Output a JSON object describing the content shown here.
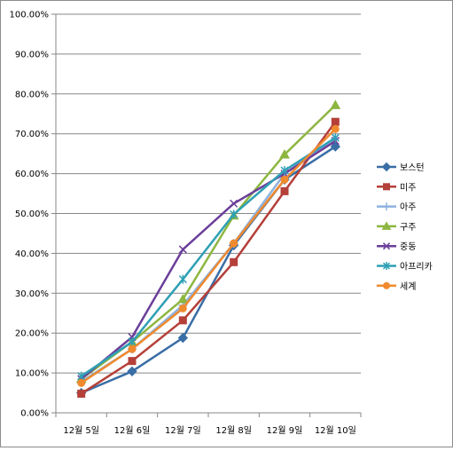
{
  "chart_data": {
    "type": "line",
    "categories": [
      "12월 5일",
      "12월 6일",
      "12월 7일",
      "12월 8일",
      "12월 9일",
      "12월 10일"
    ],
    "y_tick_labels": [
      "0.00%",
      "10.00%",
      "20.00%",
      "30.00%",
      "40.00%",
      "50.00%",
      "60.00%",
      "70.00%",
      "80.00%",
      "90.00%",
      "100.00%"
    ],
    "ylim": [
      0,
      1
    ],
    "grid": true,
    "legend_position": "right",
    "series": [
      {
        "name": "보스턴",
        "color": "#3a6ea5",
        "marker": "diamond",
        "values": [
          0.05,
          0.104,
          0.188,
          0.42,
          0.585,
          0.668
        ]
      },
      {
        "name": "미주",
        "color": "#b5403a",
        "marker": "square",
        "values": [
          0.048,
          0.13,
          0.232,
          0.378,
          0.556,
          0.73
        ]
      },
      {
        "name": "아주",
        "color": "#8db2e0",
        "marker": "plus",
        "values": [
          0.078,
          0.16,
          0.27,
          0.425,
          0.6,
          0.69
        ]
      },
      {
        "name": "구주",
        "color": "#8db640",
        "marker": "triangle",
        "values": [
          0.085,
          0.178,
          0.285,
          0.495,
          0.648,
          0.772
        ]
      },
      {
        "name": "중동",
        "color": "#6b3f9a",
        "marker": "x",
        "values": [
          0.085,
          0.19,
          0.41,
          0.525,
          0.6,
          0.682
        ]
      },
      {
        "name": "아프리카",
        "color": "#2fa0b5",
        "marker": "asterisk",
        "values": [
          0.092,
          0.178,
          0.335,
          0.498,
          0.608,
          0.69
        ]
      },
      {
        "name": "세계",
        "color": "#f08a2e",
        "marker": "circle",
        "values": [
          0.075,
          0.16,
          0.262,
          0.425,
          0.585,
          0.712
        ]
      }
    ]
  }
}
